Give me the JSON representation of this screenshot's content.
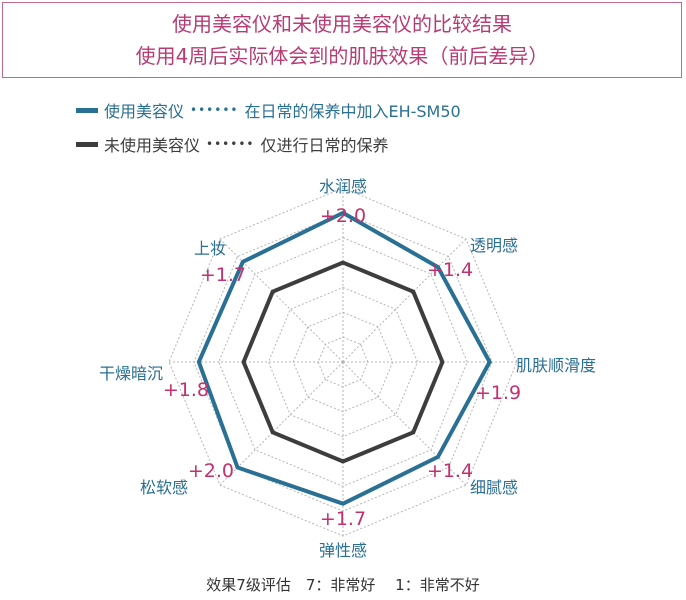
{
  "header": {
    "title_line1": "使用美容仪和未使用美容仪的比较结果",
    "title_line2": "使用4周后实际体会到的肌肤效果（前后差异）"
  },
  "legend": {
    "items": [
      {
        "label": "使用美容仪",
        "dots": "••••••",
        "desc": "在日常的保养中加入EH-SM50",
        "color": "#2a7094"
      },
      {
        "label": "未使用美容仪",
        "dots": "••••••",
        "desc": "仅进行日常的保养",
        "color": "#3d3d3d"
      }
    ]
  },
  "chart_data": {
    "type": "radar",
    "axes": [
      "水润感",
      "透明感",
      "肌肤顺滑度",
      "细腻感",
      "弹性感",
      "松软感",
      "干燥暗沉",
      "上妆"
    ],
    "diff_labels": [
      "+2.0",
      "+1.4",
      "+1.9",
      "+1.4",
      "+1.7",
      "+2.0",
      "+1.8",
      "+1.7"
    ],
    "series": [
      {
        "name": "使用美容仪",
        "values": [
          6.0,
          5.4,
          5.9,
          5.4,
          5.7,
          6.0,
          5.8,
          5.7
        ]
      },
      {
        "name": "未使用美容仪",
        "values": [
          4.0,
          4.0,
          4.0,
          4.0,
          4.0,
          4.0,
          4.0,
          4.0
        ]
      }
    ],
    "rlim": [
      0,
      7
    ],
    "grid_levels": [
      1,
      2,
      3,
      4,
      5,
      6,
      7
    ],
    "colors": {
      "axis_label": "#2a6f95",
      "diff_label": "#c2306d",
      "grid": "#b5b5b5",
      "used": "#2a7094",
      "unused": "#3d3d3d"
    }
  },
  "footer": {
    "note": "效果7级评估　7：非常好　 1：非常不好"
  }
}
